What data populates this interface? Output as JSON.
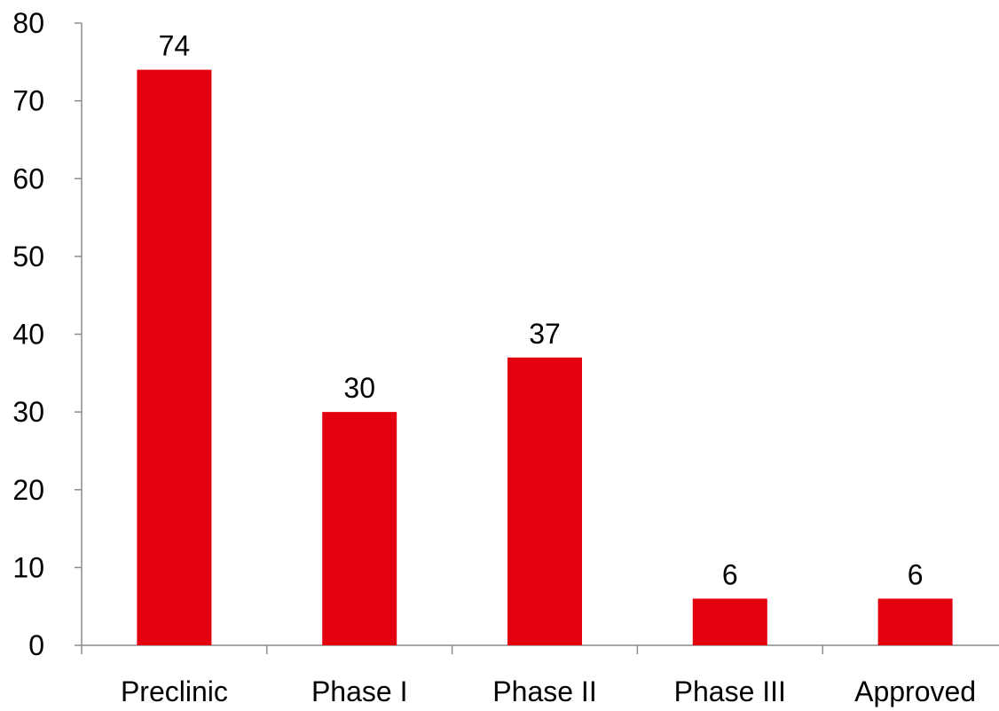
{
  "chart_data": {
    "type": "bar",
    "title": "",
    "xlabel": "",
    "ylabel": "",
    "categories": [
      "Preclinic",
      "Phase I",
      "Phase II",
      "Phase III",
      "Approved"
    ],
    "series": [
      {
        "values": [
          74,
          30,
          37,
          6,
          6
        ]
      }
    ],
    "data_labels": [
      "74",
      "30",
      "37",
      "6",
      "6"
    ],
    "ylim": [
      0,
      80
    ],
    "yticks": [
      0,
      10,
      20,
      30,
      40,
      50,
      60,
      70,
      80
    ],
    "ytick_labels": [
      "0",
      "10",
      "20",
      "30",
      "40",
      "50",
      "60",
      "70",
      "80"
    ],
    "grid": false,
    "legend": "none",
    "colors": {
      "bar": "#e3000f",
      "axis": "#8c8c8c",
      "text": "#000000"
    }
  }
}
